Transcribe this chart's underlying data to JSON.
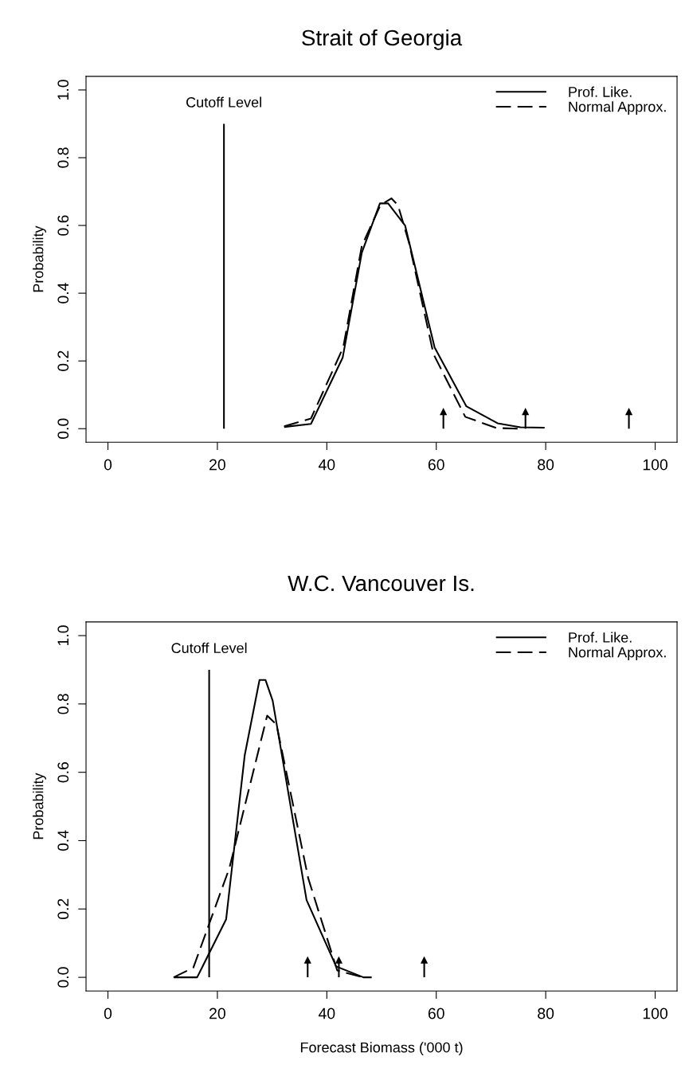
{
  "chart_data": [
    {
      "type": "line",
      "title": "Strait of Georgia",
      "ylabel": "Probability",
      "xlim": [
        -4,
        104
      ],
      "xticks": [
        0,
        20,
        40,
        60,
        80,
        100
      ],
      "ylim": [
        -0.04,
        1.04
      ],
      "yticks": [
        {
          "value": 0,
          "label": "0.0"
        },
        {
          "value": 0.2,
          "label": "0.2"
        },
        {
          "value": 0.4,
          "label": "0.4"
        },
        {
          "value": 0.6,
          "label": "0.6"
        },
        {
          "value": 0.8,
          "label": "0.8"
        },
        {
          "value": 1,
          "label": "1.0"
        }
      ],
      "legend": "top right",
      "grid": false,
      "series": [
        {
          "name": "Prof. Like.",
          "color": "#000000",
          "line_style": "solid",
          "x": [
            32.2,
            37.1,
            42.9,
            46.4,
            49.7,
            51.2,
            54.3,
            59.7,
            65.5,
            71.2,
            75.4,
            79.8
          ],
          "values": [
            0.005,
            0.014,
            0.21,
            0.52,
            0.665,
            0.665,
            0.6,
            0.24,
            0.066,
            0.016,
            0.004,
            0.003
          ]
        },
        {
          "name": "Normal Approx.",
          "color": "#000000",
          "line_style": "dashed",
          "x": [
            32.2,
            37.1,
            43.0,
            46.4,
            49.8,
            51.8,
            53.0,
            55.0,
            59.5,
            65.3,
            71.0,
            75.0
          ],
          "values": [
            0.007,
            0.03,
            0.24,
            0.54,
            0.66,
            0.68,
            0.66,
            0.55,
            0.22,
            0.035,
            0.002,
            0.0
          ]
        },
        {
          "type": "lollipop",
          "marker": "triangle",
          "color": "#000000",
          "x": [
            61.3,
            76.3,
            95.2
          ],
          "values": [
            0.05,
            0.05,
            0.05
          ]
        }
      ],
      "ref_lines": [
        {
          "axis": "x",
          "value": 21.2,
          "label": "Cutoff Level",
          "color": "#000000"
        }
      ]
    },
    {
      "type": "line",
      "title": "W.C. Vancouver Is.",
      "xlabel": "Forecast Biomass ('000 t)",
      "ylabel": "Probability",
      "xlim": [
        -4,
        104
      ],
      "xticks": [
        0,
        20,
        40,
        60,
        80,
        100
      ],
      "ylim": [
        -0.04,
        1.04
      ],
      "yticks": [
        {
          "value": 0,
          "label": "0.0"
        },
        {
          "value": 0.2,
          "label": "0.2"
        },
        {
          "value": 0.4,
          "label": "0.4"
        },
        {
          "value": 0.6,
          "label": "0.6"
        },
        {
          "value": 0.8,
          "label": "0.8"
        },
        {
          "value": 1,
          "label": "1.0"
        }
      ],
      "legend": "top right",
      "grid": false,
      "series": [
        {
          "name": "Prof. Like.",
          "color": "#000000",
          "line_style": "solid",
          "x": [
            12.0,
            16.3,
            21.6,
            25.0,
            27.7,
            28.8,
            30.1,
            36.3,
            41.7,
            46.7,
            48.2
          ],
          "values": [
            0.0,
            0.0,
            0.17,
            0.65,
            0.87,
            0.87,
            0.81,
            0.226,
            0.032,
            0.0,
            0.0
          ]
        },
        {
          "name": "Normal Approx.",
          "color": "#000000",
          "line_style": "dashed",
          "x": [
            12.0,
            15.6,
            22.2,
            29.1,
            30.8,
            36.6,
            41.9,
            46.7
          ],
          "values": [
            0.0,
            0.028,
            0.32,
            0.766,
            0.74,
            0.29,
            0.02,
            0.0
          ]
        },
        {
          "type": "lollipop",
          "marker": "triangle",
          "color": "#000000",
          "x": [
            36.5,
            42.2,
            57.8
          ],
          "values": [
            0.05,
            0.05,
            0.05
          ]
        }
      ],
      "ref_lines": [
        {
          "axis": "x",
          "value": 18.5,
          "label": "Cutoff Level",
          "color": "#000000"
        }
      ]
    }
  ]
}
